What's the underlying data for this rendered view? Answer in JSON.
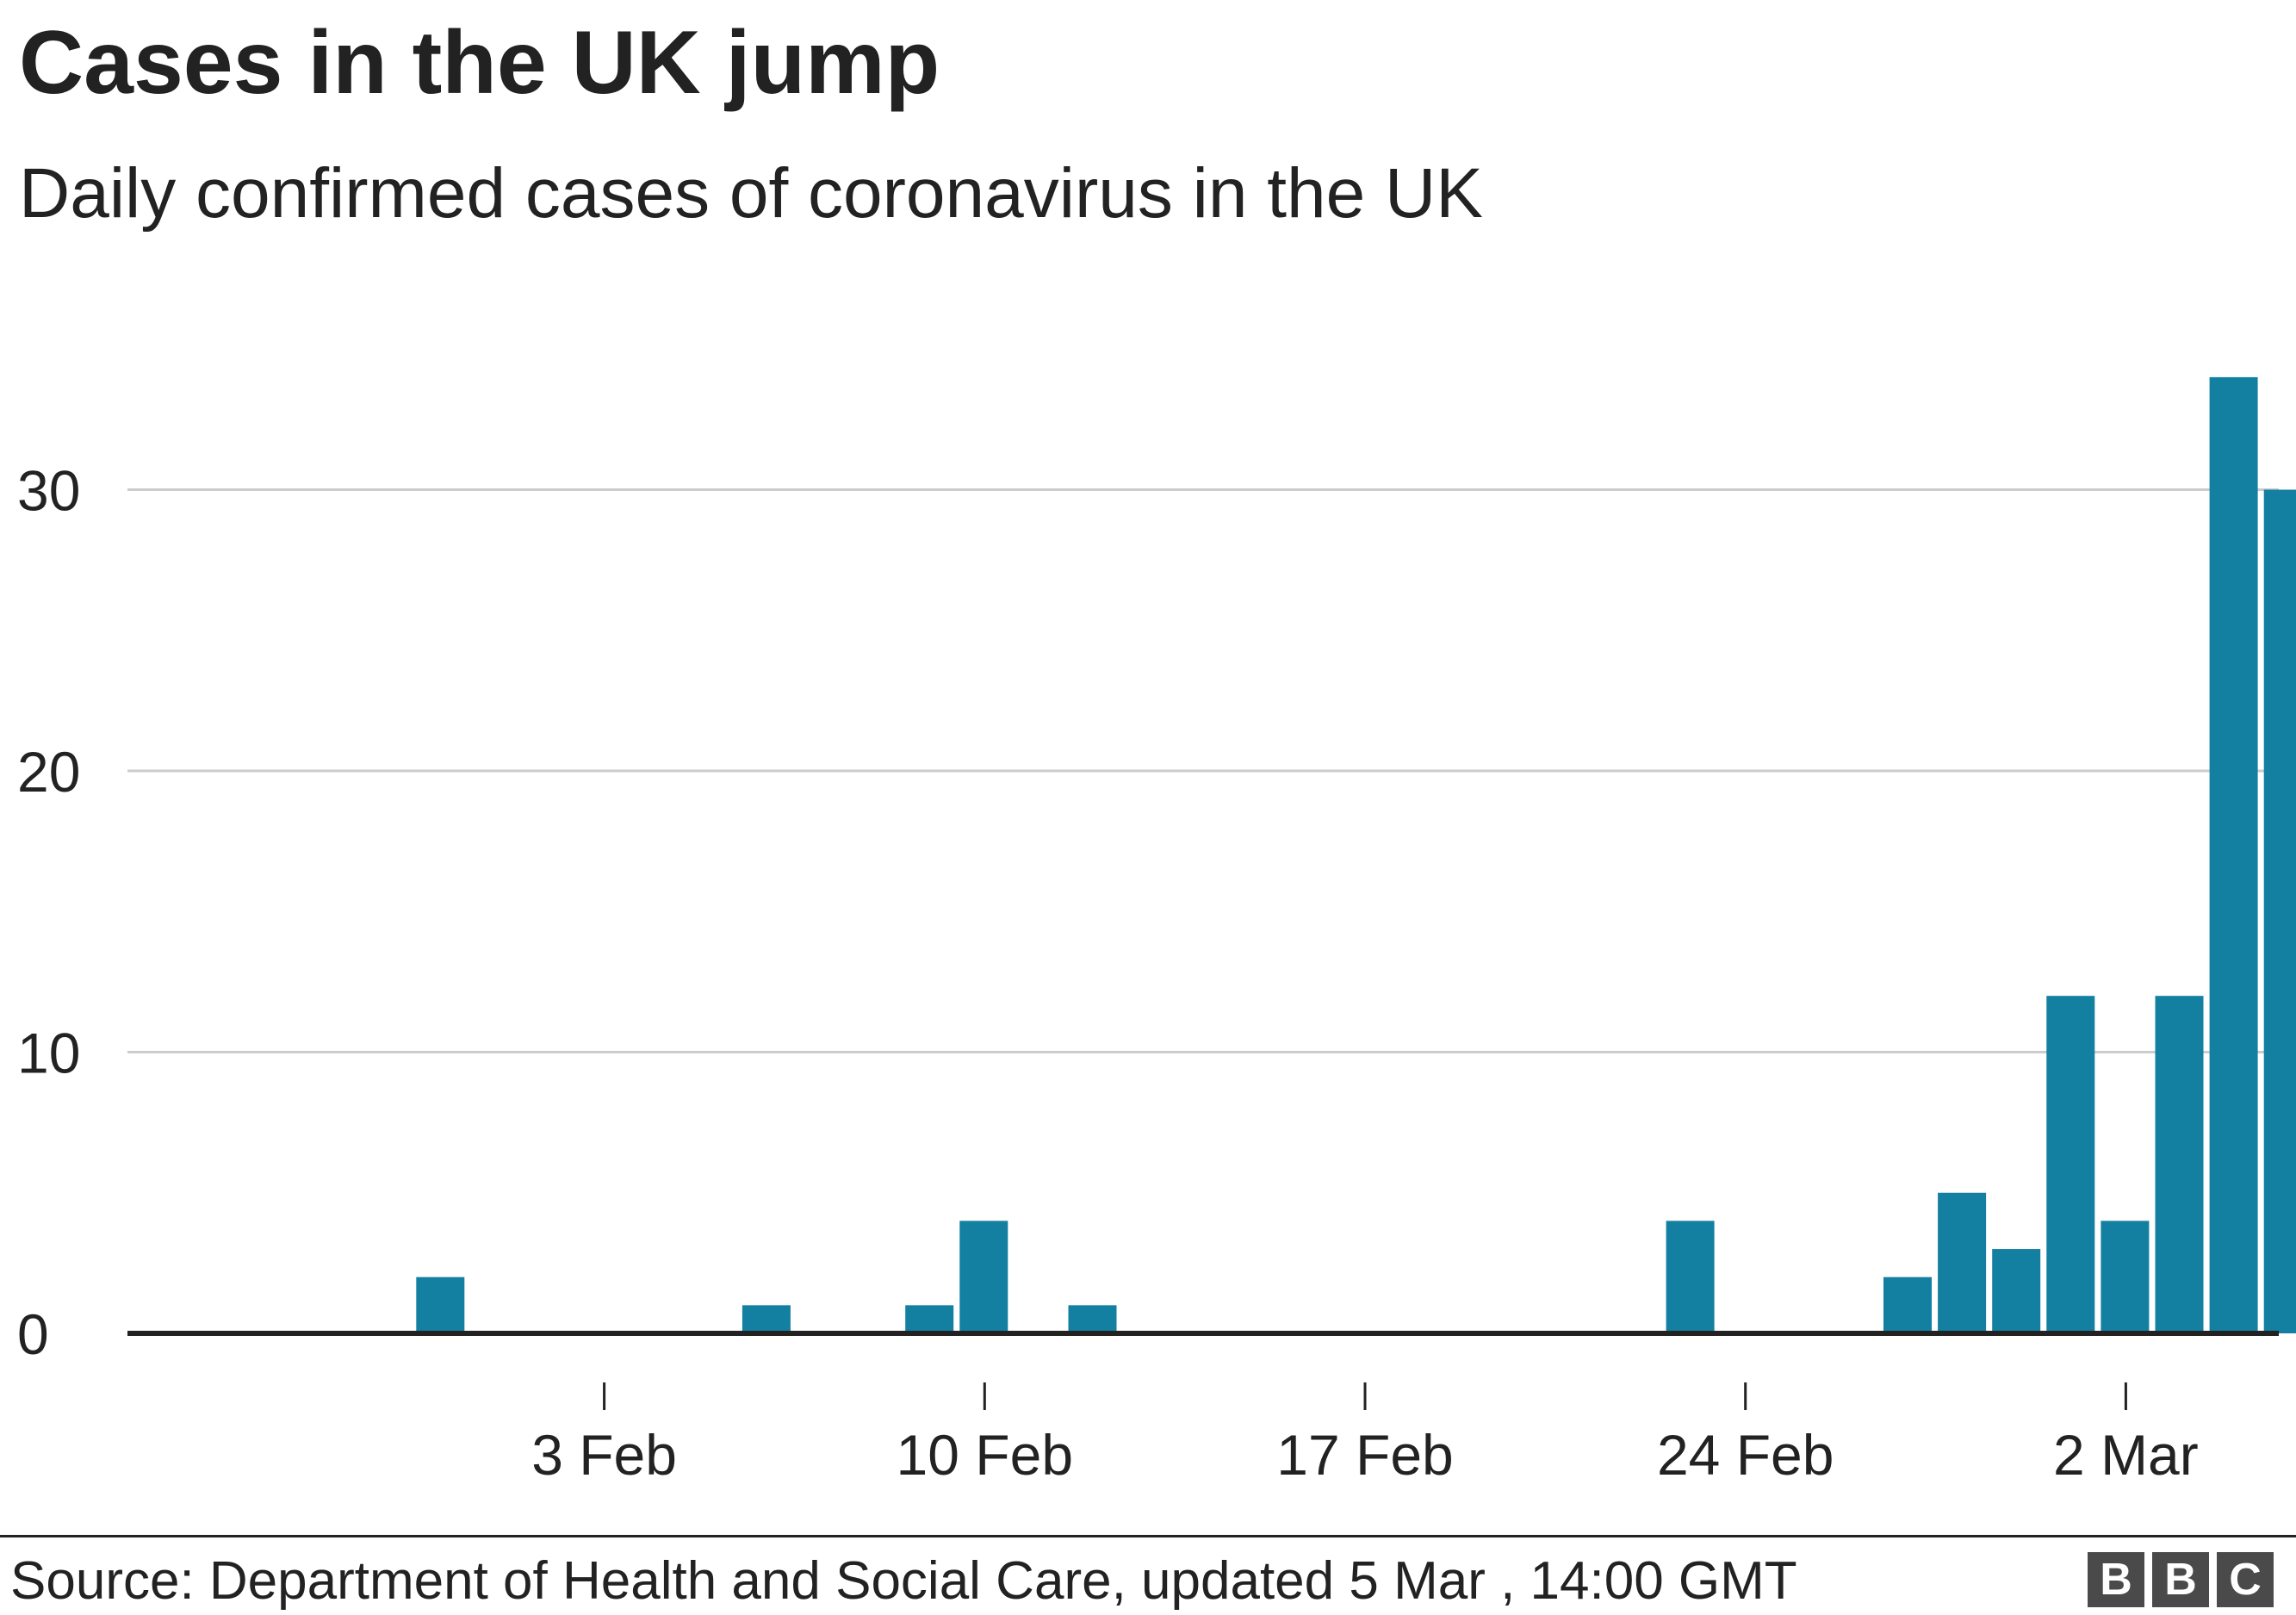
{
  "chart_data": {
    "type": "bar",
    "title": "Cases in the UK jump",
    "subtitle": "Daily confirmed cases of coronavirus in the UK",
    "xlabel": "",
    "ylabel": "",
    "x_start": "2020-01-28",
    "x_end": "2020-03-05",
    "x_ticks": [
      {
        "date": "2020-02-03",
        "label": "3 Feb"
      },
      {
        "date": "2020-02-10",
        "label": "10 Feb"
      },
      {
        "date": "2020-02-17",
        "label": "17 Feb"
      },
      {
        "date": "2020-02-24",
        "label": "24 Feb"
      },
      {
        "date": "2020-03-02",
        "label": "2 Mar"
      }
    ],
    "y_ticks": [
      0,
      10,
      20,
      30
    ],
    "ylim": [
      0,
      35
    ],
    "grid": true,
    "bar_color": "#1380a1",
    "series": [
      {
        "points": [
          {
            "date": "2020-01-31",
            "value": 2
          },
          {
            "date": "2020-02-06",
            "value": 1
          },
          {
            "date": "2020-02-09",
            "value": 1
          },
          {
            "date": "2020-02-10",
            "value": 4
          },
          {
            "date": "2020-02-12",
            "value": 1
          },
          {
            "date": "2020-02-23",
            "value": 4
          },
          {
            "date": "2020-02-27",
            "value": 2
          },
          {
            "date": "2020-02-28",
            "value": 5
          },
          {
            "date": "2020-02-29",
            "value": 3
          },
          {
            "date": "2020-03-01",
            "value": 12
          },
          {
            "date": "2020-03-02",
            "value": 4
          },
          {
            "date": "2020-03-03",
            "value": 12
          },
          {
            "date": "2020-03-04",
            "value": 34
          },
          {
            "date": "2020-03-05",
            "value": 30
          }
        ]
      }
    ]
  },
  "footer": {
    "source": "Source: Department of Health and Social Care, updated 5 Mar , 14:00 GMT",
    "logo_letters": [
      "B",
      "B",
      "C"
    ]
  }
}
